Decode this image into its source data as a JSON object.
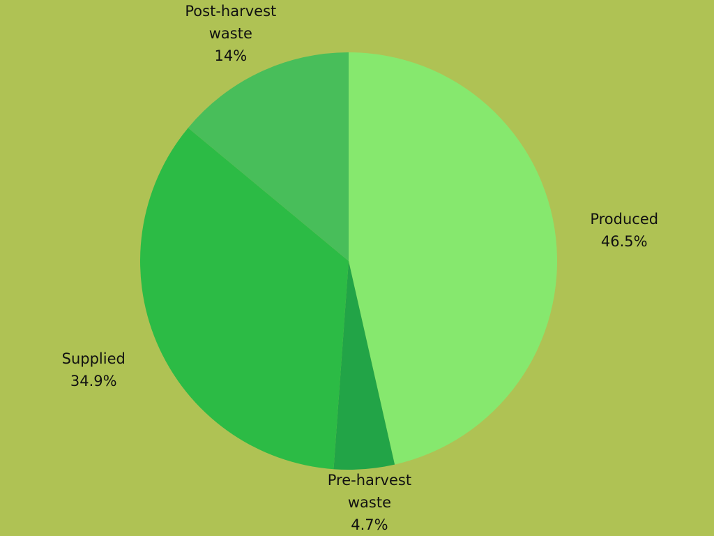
{
  "chart_data": {
    "type": "pie",
    "categories": [
      "Produced",
      "Pre-harvest waste",
      "Supplied",
      "Post-harvest waste"
    ],
    "values": [
      46.5,
      4.7,
      34.9,
      14
    ],
    "value_labels": [
      "46.5%",
      "4.7%",
      "34.9%",
      "14%"
    ],
    "colors": [
      "#86e86e",
      "#22a447",
      "#2cbb45",
      "#48be5a"
    ]
  }
}
